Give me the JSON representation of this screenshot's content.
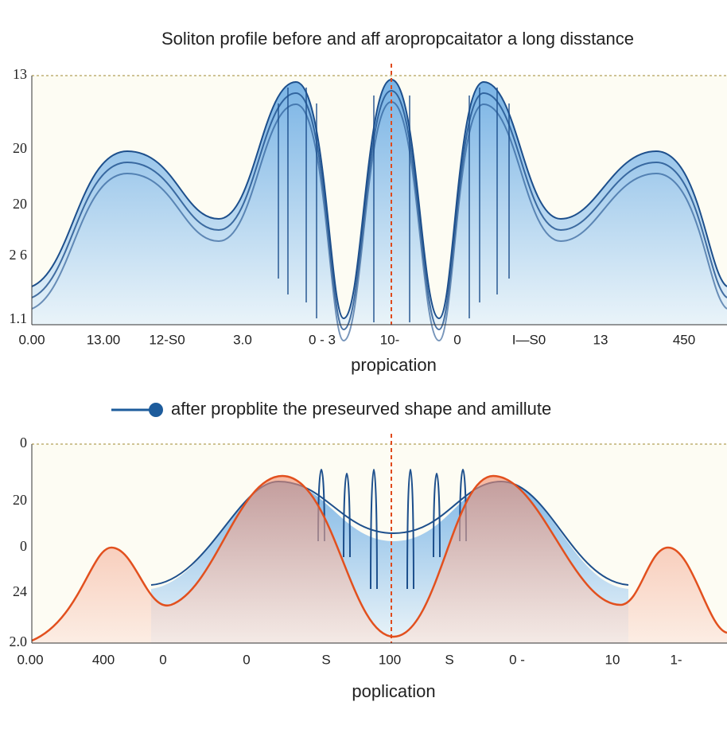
{
  "top_panel": {
    "title": "Soliton profile before and aff aropropcaitator a long disstance",
    "y_tick_labels": [
      "13",
      "20",
      "20",
      "2 6",
      "1.1"
    ],
    "x_tick_labels": [
      "0.00",
      "13.00",
      "12-S0",
      "3.0",
      "0 - 3",
      "10-",
      "0",
      "I—S0",
      "13",
      "450"
    ],
    "x_label": "propication"
  },
  "legend": {
    "label": "after propblite the preseurved shape and amillute"
  },
  "bottom_panel": {
    "y_tick_labels": [
      "0",
      "20",
      "0",
      "24",
      "2.0"
    ],
    "x_tick_labels": [
      "0.00",
      "400",
      "0",
      "0",
      "S",
      "100",
      "S",
      "0 -",
      "10",
      "1-"
    ],
    "x_label": "poplication"
  }
}
